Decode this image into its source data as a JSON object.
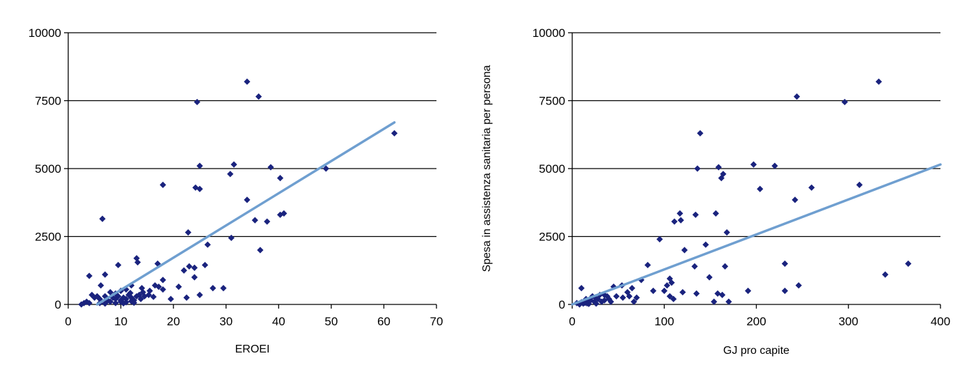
{
  "chart_data": [
    {
      "type": "scatter",
      "title": "",
      "xlabel": "EROEI",
      "ylabel": "",
      "xlim": [
        0,
        70
      ],
      "ylim": [
        0,
        10000
      ],
      "xticks": [
        0,
        10,
        20,
        30,
        40,
        50,
        60,
        70
      ],
      "yticks": [
        0,
        2500,
        5000,
        7500,
        10000
      ],
      "ytick_labels": [
        "0",
        "2500",
        "5000",
        "7500",
        "10000"
      ],
      "grid": "horizontal",
      "marker_color": "#1a237e",
      "trendline_color": "#6f9fd0",
      "trendline": {
        "x": [
          5.5,
          62
        ],
        "y": [
          0,
          6700
        ]
      },
      "points": [
        [
          34,
          8200
        ],
        [
          24.5,
          7450
        ],
        [
          36.2,
          7650
        ],
        [
          62,
          6300
        ],
        [
          31.5,
          5150
        ],
        [
          25,
          5100
        ],
        [
          30.8,
          4800
        ],
        [
          38.5,
          5050
        ],
        [
          40.3,
          4650
        ],
        [
          49,
          5000
        ],
        [
          18,
          4400
        ],
        [
          24.2,
          4300
        ],
        [
          25,
          4250
        ],
        [
          34,
          3850
        ],
        [
          35.5,
          3100
        ],
        [
          37.8,
          3050
        ],
        [
          40.3,
          3300
        ],
        [
          41,
          3350
        ],
        [
          22.8,
          2650
        ],
        [
          26.5,
          2200
        ],
        [
          31,
          2450
        ],
        [
          36.5,
          2000
        ],
        [
          6.5,
          3150
        ],
        [
          13,
          1700
        ],
        [
          13.2,
          1550
        ],
        [
          17,
          1500
        ],
        [
          23,
          1400
        ],
        [
          24,
          1350
        ],
        [
          26,
          1450
        ],
        [
          9.5,
          1450
        ],
        [
          4,
          1050
        ],
        [
          7,
          1100
        ],
        [
          22,
          1250
        ],
        [
          24,
          1000
        ],
        [
          18,
          900
        ],
        [
          16.5,
          700
        ],
        [
          18,
          550
        ],
        [
          14,
          600
        ],
        [
          21,
          650
        ],
        [
          27.5,
          600
        ],
        [
          29.5,
          600
        ],
        [
          22.5,
          250
        ],
        [
          25,
          350
        ],
        [
          19.5,
          200
        ],
        [
          15.3,
          350
        ],
        [
          6.2,
          700
        ],
        [
          8,
          450
        ],
        [
          9,
          400
        ],
        [
          10,
          500
        ],
        [
          11,
          550
        ],
        [
          12,
          700
        ],
        [
          14.2,
          450
        ],
        [
          15.5,
          500
        ],
        [
          17.2,
          650
        ],
        [
          4.5,
          350
        ],
        [
          5,
          250
        ],
        [
          5.5,
          300
        ],
        [
          6,
          200
        ],
        [
          7,
          300
        ],
        [
          7.5,
          150
        ],
        [
          8.5,
          250
        ],
        [
          9,
          200
        ],
        [
          9.5,
          300
        ],
        [
          10,
          150
        ],
        [
          10.5,
          250
        ],
        [
          11,
          200
        ],
        [
          11.5,
          350
        ],
        [
          12,
          250
        ],
        [
          12.5,
          150
        ],
        [
          13,
          300
        ],
        [
          13.5,
          350
        ],
        [
          14.5,
          300
        ],
        [
          8,
          100
        ],
        [
          9,
          50
        ],
        [
          10,
          100
        ],
        [
          11,
          80
        ],
        [
          12,
          120
        ],
        [
          3,
          50
        ],
        [
          3.5,
          100
        ],
        [
          4,
          50
        ],
        [
          2.5,
          0
        ],
        [
          6,
          50
        ],
        [
          7,
          30
        ],
        [
          10.5,
          40
        ],
        [
          12.5,
          60
        ],
        [
          11.8,
          420
        ],
        [
          13.8,
          200
        ],
        [
          16.2,
          280
        ]
      ]
    },
    {
      "type": "scatter",
      "title": "",
      "xlabel": "GJ pro capite",
      "ylabel": "Spesa in assistenza sanitaria per persona",
      "xlim": [
        0,
        400
      ],
      "ylim": [
        0,
        10000
      ],
      "xticks": [
        0,
        100,
        200,
        300,
        400
      ],
      "yticks": [
        0,
        2500,
        5000,
        7500,
        10000
      ],
      "ytick_labels": [
        "0",
        "2500",
        "5000",
        "7500",
        "10000"
      ],
      "grid": "horizontal",
      "marker_color": "#1a237e",
      "trendline_color": "#6f9fd0",
      "trendline": {
        "x": [
          0,
          400
        ],
        "y": [
          0,
          5150
        ]
      },
      "points": [
        [
          333,
          8200
        ],
        [
          244,
          7650
        ],
        [
          296,
          7450
        ],
        [
          139,
          6300
        ],
        [
          197,
          5150
        ],
        [
          220,
          5100
        ],
        [
          136,
          5000
        ],
        [
          159,
          5050
        ],
        [
          164,
          4800
        ],
        [
          162,
          4650
        ],
        [
          204,
          4250
        ],
        [
          260,
          4300
        ],
        [
          312,
          4400
        ],
        [
          242,
          3850
        ],
        [
          117,
          3350
        ],
        [
          134,
          3300
        ],
        [
          156,
          3350
        ],
        [
          111,
          3050
        ],
        [
          118,
          3100
        ],
        [
          168,
          2650
        ],
        [
          95,
          2400
        ],
        [
          145,
          2200
        ],
        [
          122,
          2000
        ],
        [
          231,
          1500
        ],
        [
          365,
          1500
        ],
        [
          340,
          1100
        ],
        [
          133,
          1400
        ],
        [
          166,
          1400
        ],
        [
          82,
          1450
        ],
        [
          149,
          1000
        ],
        [
          246,
          700
        ],
        [
          231,
          500
        ],
        [
          191,
          500
        ],
        [
          106,
          950
        ],
        [
          103,
          700
        ],
        [
          108,
          800
        ],
        [
          75,
          900
        ],
        [
          65,
          600
        ],
        [
          54,
          700
        ],
        [
          45,
          650
        ],
        [
          60,
          450
        ],
        [
          88,
          500
        ],
        [
          100,
          500
        ],
        [
          120,
          450
        ],
        [
          106,
          300
        ],
        [
          110,
          200
        ],
        [
          135,
          400
        ],
        [
          158,
          400
        ],
        [
          154,
          100
        ],
        [
          163,
          350
        ],
        [
          170,
          100
        ],
        [
          35,
          350
        ],
        [
          48,
          300
        ],
        [
          55,
          250
        ],
        [
          62,
          300
        ],
        [
          70,
          250
        ],
        [
          67,
          100
        ],
        [
          10,
          600
        ],
        [
          15,
          200
        ],
        [
          18,
          100
        ],
        [
          20,
          150
        ],
        [
          22,
          300
        ],
        [
          25,
          250
        ],
        [
          28,
          200
        ],
        [
          30,
          350
        ],
        [
          32,
          100
        ],
        [
          35,
          150
        ],
        [
          38,
          300
        ],
        [
          40,
          200
        ],
        [
          42,
          100
        ],
        [
          5,
          50
        ],
        [
          8,
          0
        ],
        [
          10,
          80
        ],
        [
          12,
          30
        ],
        [
          14,
          60
        ],
        [
          16,
          40
        ],
        [
          24,
          100
        ],
        [
          26,
          30
        ],
        [
          18,
          20
        ]
      ]
    }
  ]
}
